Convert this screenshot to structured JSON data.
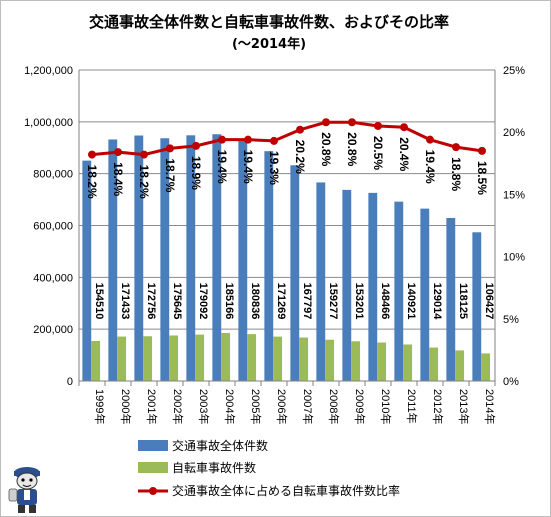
{
  "chart_data": {
    "type": "bar",
    "title": "交通事故全体件数と自転車事故件数、およびその比率",
    "subtitle": "(〜2014年)",
    "categories": [
      "1999年",
      "2000年",
      "2001年",
      "2002年",
      "2003年",
      "2004年",
      "2005年",
      "2006年",
      "2007年",
      "2008年",
      "2009年",
      "2010年",
      "2011年",
      "2012年",
      "2013年",
      "2014年"
    ],
    "series": [
      {
        "name": "交通事故全体件数",
        "kind": "bar",
        "axis": "left",
        "color": "#4a7ebb",
        "values": [
          850363,
          931934,
          947169,
          936721,
          947993,
          952191,
          933828,
          886864,
          832454,
          766147,
          737474,
          725924,
          692084,
          665138,
          629021,
          573842
        ]
      },
      {
        "name": "自転車事故件数",
        "kind": "bar",
        "axis": "left",
        "color": "#9bbb59",
        "values": [
          154510,
          171433,
          172756,
          175645,
          179092,
          185166,
          180836,
          171269,
          167797,
          159277,
          153201,
          148466,
          140921,
          129014,
          118125,
          106427
        ]
      },
      {
        "name": "交通事故全体に占める自転車事故件数比率",
        "kind": "line",
        "axis": "right",
        "color": "#c00000",
        "values": [
          18.2,
          18.4,
          18.2,
          18.7,
          18.9,
          19.4,
          19.4,
          19.3,
          20.2,
          20.8,
          20.8,
          20.5,
          20.4,
          19.4,
          18.8,
          18.5
        ]
      }
    ],
    "bar_labels": [
      "154510",
      "171433",
      "172756",
      "175645",
      "179092",
      "185166",
      "180836",
      "171269",
      "167797",
      "159277",
      "153201",
      "148466",
      "140921",
      "129014",
      "118125",
      "106427"
    ],
    "pct_labels": [
      "18.2%",
      "18.4%",
      "18.2%",
      "18.7%",
      "18.9%",
      "19.4%",
      "19.4%",
      "19.3%",
      "20.2%",
      "20.8%",
      "20.8%",
      "20.5%",
      "20.4%",
      "19.4%",
      "18.8%",
      "18.5%"
    ],
    "y_left": {
      "min": 0,
      "max": 1200000,
      "ticks": [
        "0",
        "200,000",
        "400,000",
        "600,000",
        "800,000",
        "1,000,000",
        "1,200,000"
      ]
    },
    "y_right": {
      "min": 0,
      "max": 25,
      "ticks": [
        "0%",
        "5%",
        "10%",
        "15%",
        "20%",
        "25%"
      ]
    },
    "grid": true,
    "legend_position": "bottom"
  }
}
